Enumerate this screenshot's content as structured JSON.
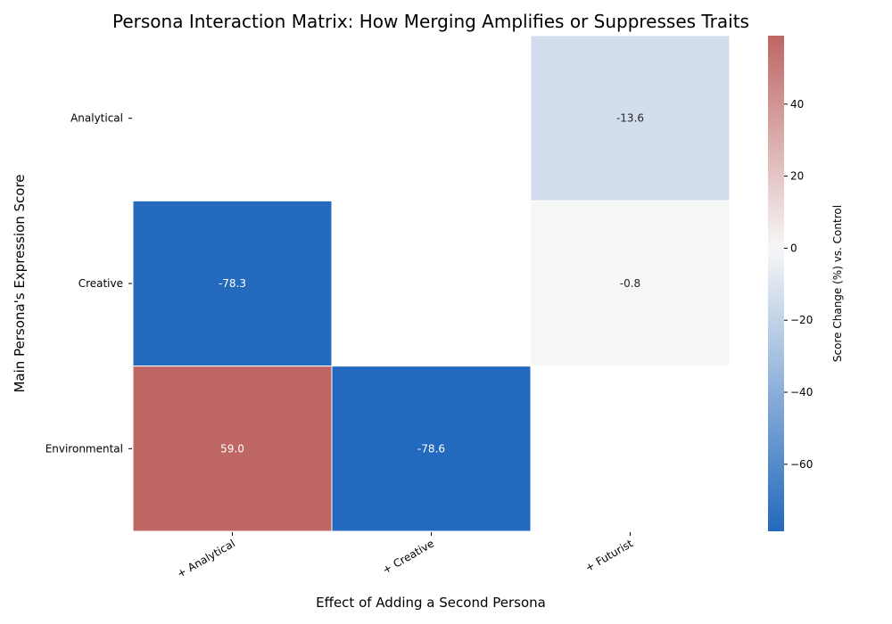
{
  "chart_data": {
    "type": "heatmap",
    "title": "Persona Interaction Matrix: How Merging Amplifies or Suppresses Traits",
    "xlabel": "Effect of Adding a Second Persona",
    "ylabel": "Main Persona's Expression Score",
    "x_categories": [
      "+ Analytical",
      "+ Creative",
      "+ Futurist"
    ],
    "y_categories": [
      "Analytical",
      "Creative",
      "Environmental"
    ],
    "values": [
      [
        null,
        null,
        -13.6
      ],
      [
        -78.3,
        null,
        -0.8
      ],
      [
        59.0,
        -78.6,
        null
      ]
    ],
    "colorbar": {
      "label": "Score Change (%) vs. Control",
      "range": [
        -78.6,
        59.0
      ],
      "ticks": [
        40,
        20,
        0,
        -20,
        -40,
        -60
      ],
      "colormap_low": "#2369bd",
      "colormap_mid": "#f7f7f7",
      "colormap_high": "#be6663"
    },
    "grid": false,
    "legend": "colorbar-right"
  }
}
